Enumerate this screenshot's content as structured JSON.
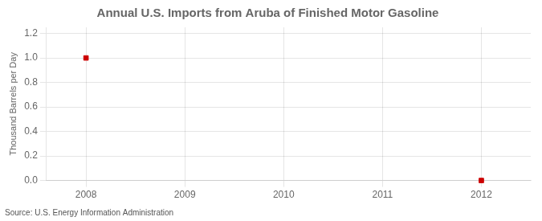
{
  "chart_data": {
    "type": "scatter",
    "title": "Annual U.S. Imports from Aruba of Finished Motor Gasoline",
    "ylabel": "Thousand Barrels per Day",
    "source": "Source: U.S. Energy Information Administration",
    "x": [
      2008,
      2012
    ],
    "values": [
      1.0,
      0.0
    ],
    "color": "#cc0000",
    "marker": "square",
    "line_style": "none",
    "xlim": [
      2007.6,
      2012.5
    ],
    "ylim": [
      0.0,
      1.25
    ],
    "xticks": [
      2008,
      2009,
      2010,
      2011,
      2012
    ],
    "yticks": [
      {
        "value": 0.0,
        "label": "0.0"
      },
      0.2,
      0.4,
      0.6,
      0.8,
      {
        "value": 1.0,
        "label": "1.0"
      },
      1.2
    ],
    "grid": true
  }
}
